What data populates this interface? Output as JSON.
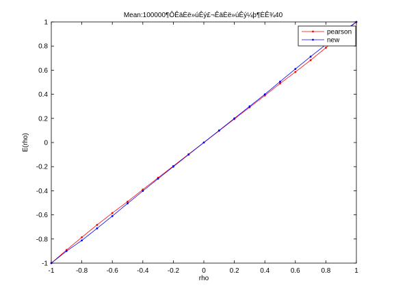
{
  "chart_data": {
    "type": "line",
    "title": "Mean:100000¶ÔÊäÈë»úÊý£¬ÊäÈë»úÊý¼þ¶ÈÊ¾40",
    "xlabel": "rho",
    "ylabel": "E(rho)",
    "xlim": [
      -1,
      1
    ],
    "ylim": [
      -1,
      1
    ],
    "xticks": [
      -1,
      -0.8,
      -0.6,
      -0.4,
      -0.2,
      0,
      0.2,
      0.4,
      0.6,
      0.8,
      1
    ],
    "yticks": [
      -1,
      -0.8,
      -0.6,
      -0.4,
      -0.2,
      0,
      0.2,
      0.4,
      0.6,
      0.8,
      1
    ],
    "grid": false,
    "legend_position": "top-right",
    "x": [
      -1,
      -0.9,
      -0.8,
      -0.7,
      -0.6,
      -0.5,
      -0.4,
      -0.3,
      -0.2,
      -0.1,
      0,
      0.1,
      0.2,
      0.3,
      0.4,
      0.5,
      0.6,
      0.7,
      0.8,
      0.9,
      1
    ],
    "series": [
      {
        "name": "pearson",
        "color": "#ff0000",
        "marker": "dot",
        "values": [
          -1,
          -0.891,
          -0.786,
          -0.683,
          -0.585,
          -0.49,
          -0.39,
          -0.292,
          -0.195,
          -0.097,
          0,
          0.097,
          0.195,
          0.292,
          0.39,
          0.49,
          0.585,
          0.683,
          0.786,
          0.891,
          1
        ]
      },
      {
        "name": "new",
        "color": "#0000ff",
        "marker": "dot",
        "values": [
          -1,
          -0.9,
          -0.812,
          -0.712,
          -0.61,
          -0.505,
          -0.402,
          -0.3,
          -0.2,
          -0.1,
          0,
          0.1,
          0.2,
          0.3,
          0.4,
          0.505,
          0.61,
          0.712,
          0.812,
          0.91,
          1
        ]
      }
    ]
  }
}
